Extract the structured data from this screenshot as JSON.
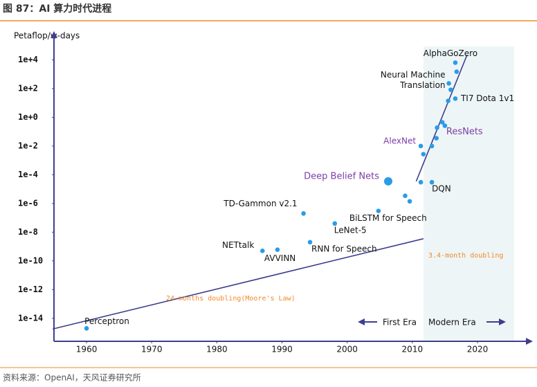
{
  "header": {
    "title": "图 87：AI 算力时代进程"
  },
  "footer": {
    "source": "资料来源：OpenAI，天风证券研究所"
  },
  "chart_data": {
    "type": "scatter",
    "ylabel": "Petaflop/w-days",
    "log_y": true,
    "xlim": [
      1955,
      2028.5
    ],
    "ylim": [
      2.5e-16,
      1000000
    ],
    "xticks": [
      1960,
      1970,
      1980,
      1990,
      2000,
      2010,
      2020
    ],
    "yticks": [
      {
        "value": 10000,
        "label": "1e+4"
      },
      {
        "value": 100,
        "label": "1e+2"
      },
      {
        "value": 1,
        "label": "1e+0"
      },
      {
        "value": 0.01,
        "label": "1e-2"
      },
      {
        "value": 0.0001,
        "label": "1e-4"
      },
      {
        "value": 1e-06,
        "label": "1e-6"
      },
      {
        "value": 1e-08,
        "label": "1e-8"
      },
      {
        "value": 1e-10,
        "label": "1e-10"
      },
      {
        "value": 1e-12,
        "label": "1e-12"
      },
      {
        "value": 1e-14,
        "label": "1e-14"
      }
    ],
    "color": "#2b9be8",
    "line_color": "#3e3e8e",
    "shade_color": "#eef5f6",
    "annotation_color": "#f08a2a",
    "x": [
      1960,
      1987,
      1989.3,
      1993.3,
      1994.3,
      1998.1,
      2004.8,
      2006.3,
      2008.9,
      2009.6,
      2011.3,
      2013,
      2011.3,
      2011.7,
      2013,
      2013.7,
      2013.8,
      2014.6,
      2015,
      2015.5,
      2016.6,
      2015.9,
      2015.6,
      2016.8,
      2016.6
    ],
    "values": [
      2e-15,
      5e-10,
      6e-10,
      2e-07,
      2e-09,
      4e-08,
      3e-07,
      3.5e-05,
      3.4e-06,
      1.4e-06,
      3e-05,
      3e-05,
      0.01,
      0.0027,
      0.01,
      0.035,
      0.19,
      0.45,
      0.26,
      14,
      20,
      83,
      230,
      1500,
      6400
    ],
    "labels": [
      "Perceptron",
      "NETtalk",
      "AVVINN",
      "TD-Gammon v2.1",
      "RNN for Speech",
      "LeNet-5",
      "BiLSTM for Speech",
      "Deep Belief Nets",
      null,
      null,
      null,
      "DQN",
      "AlexNet",
      null,
      null,
      null,
      null,
      null,
      "ResNets",
      null,
      "TI7 Dota 1v1",
      null,
      [
        "Neural Machine",
        "Translation"
      ],
      null,
      "AlphaGoZero"
    ],
    "trends": [
      {
        "x": [
          1954.8,
          2011.7
        ],
        "y": [
          1.8e-15,
          3.5e-09
        ]
      },
      {
        "x": [
          2010.6,
          2018.4
        ],
        "y": [
          3.5e-05,
          22000
        ]
      }
    ],
    "shade_x": [
      2011.7,
      2025.6
    ],
    "annotations": [
      "24 months doubling(Moore's Law)",
      "3.4-month doubling",
      "First Era",
      "Modern Era"
    ]
  }
}
